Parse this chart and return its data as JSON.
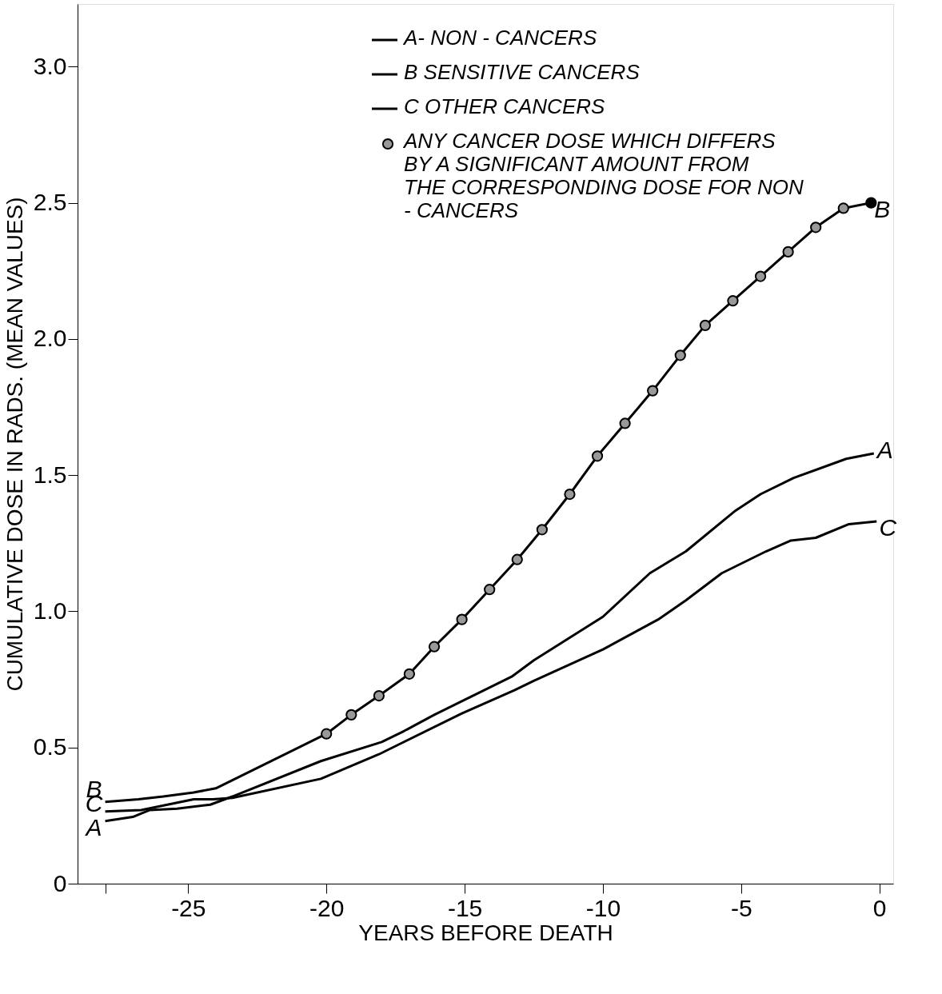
{
  "chart_data": {
    "type": "line",
    "xlabel": "YEARS BEFORE DEATH",
    "ylabel": "CUMULATIVE DOSE IN RADS.  (MEAN VALUES)",
    "xlim": [
      -29,
      0.5
    ],
    "ylim": [
      0,
      3.23
    ],
    "xticks": [
      {
        "value": -28,
        "label": null
      },
      {
        "value": -25,
        "label": "-25"
      },
      {
        "value": -20,
        "label": "-20"
      },
      {
        "value": -15,
        "label": "-15"
      },
      {
        "value": -10,
        "label": "-10"
      },
      {
        "value": -5,
        "label": "-5"
      },
      0
    ],
    "yticks": [
      0,
      0.5,
      {
        "value": 1,
        "label": "1.0"
      },
      1.5,
      {
        "value": 2,
        "label": "2.0"
      },
      2.5,
      {
        "value": 3,
        "label": "3.0"
      }
    ],
    "grid": false,
    "legend": "top right",
    "line_style": "solid",
    "series": [
      {
        "name": "A- NON - CANCERS",
        "color": "#000000",
        "marker": "none",
        "x": [
          -28,
          -27,
          -26.4,
          -25.4,
          -24.2,
          -23.4,
          -20.2,
          -18,
          -17.2,
          -16.1,
          -13.3,
          -12.5,
          -10,
          -8.3,
          -7,
          -5.2,
          -4.3,
          -3.1,
          -1.2,
          -0.2
        ],
        "values": [
          0.23,
          0.245,
          0.27,
          0.275,
          0.29,
          0.32,
          0.45,
          0.52,
          0.56,
          0.62,
          0.76,
          0.82,
          0.98,
          1.14,
          1.22,
          1.37,
          1.43,
          1.49,
          1.56,
          1.58
        ]
      },
      {
        "name": "B SENSITIVE CANCERS",
        "color": "#000000",
        "marker": "none",
        "x": [
          -28,
          -26.8,
          -25.9,
          -24.8,
          -24,
          -20,
          -19.1,
          -18.1,
          -17,
          -16.1,
          -15.1,
          -14.1,
          -13.1,
          -12.2,
          -11.2,
          -10.2,
          -9.2,
          -8.2,
          -7.2,
          -6.3,
          -5.3,
          -4.3,
          -3.3,
          -2.3,
          -1.3,
          -0.3
        ],
        "values": [
          0.3,
          0.31,
          0.32,
          0.335,
          0.35,
          0.55,
          0.62,
          0.69,
          0.77,
          0.87,
          0.97,
          1.08,
          1.19,
          1.3,
          1.43,
          1.57,
          1.69,
          1.81,
          1.94,
          2.05,
          2.14,
          2.23,
          2.32,
          2.41,
          2.48,
          2.5
        ]
      },
      {
        "name": "C OTHER CANCERS",
        "color": "#000000",
        "marker": "none",
        "x": [
          -28,
          -26.7,
          -24.8,
          -24.1,
          -23.4,
          -20.2,
          -18.1,
          -15.1,
          -13.2,
          -12.5,
          -10,
          -8,
          -7,
          -5.7,
          -4.1,
          -3.2,
          -2.3,
          -1.1,
          -0.1
        ],
        "values": [
          0.265,
          0.27,
          0.31,
          0.31,
          0.315,
          0.385,
          0.475,
          0.625,
          0.71,
          0.745,
          0.86,
          0.97,
          1.04,
          1.14,
          1.22,
          1.26,
          1.27,
          1.32,
          1.33
        ]
      },
      {
        "name": "ANY CANCER DOSE WHICH DIFFERS BY A SIGNIFICANT AMOUNT FROM THE CORRESPONDING DOSE FOR NON - CANCERS",
        "type": "scatter",
        "marker": "circle",
        "color": "#999999",
        "colors": [
          "#999999",
          "#999999",
          "#999999",
          "#999999",
          "#999999",
          "#999999",
          "#999999",
          "#999999",
          "#999999",
          "#999999",
          "#999999",
          "#999999",
          "#999999",
          "#999999",
          "#999999",
          "#999999",
          "#999999",
          "#999999",
          "#999999",
          "#999999",
          "#000000"
        ],
        "x": [
          -20,
          -19.1,
          -18.1,
          -17,
          -16.1,
          -15.1,
          -14.1,
          -13.1,
          -12.2,
          -11.2,
          -10.2,
          -9.2,
          -8.2,
          -7.2,
          -6.3,
          -5.3,
          -4.3,
          -3.3,
          -2.3,
          -1.3,
          -0.3
        ],
        "values": [
          0.55,
          0.62,
          0.69,
          0.77,
          0.87,
          0.97,
          1.08,
          1.19,
          1.3,
          1.43,
          1.57,
          1.69,
          1.81,
          1.94,
          2.05,
          2.14,
          2.23,
          2.32,
          2.41,
          2.48,
          2.5
        ]
      }
    ],
    "annotations": [
      "B",
      "C",
      "A",
      "B",
      "A",
      "C"
    ]
  }
}
